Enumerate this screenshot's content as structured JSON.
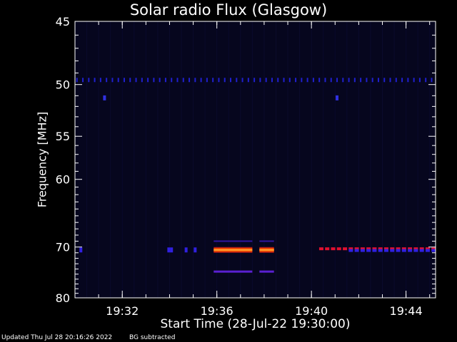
{
  "chart_data": {
    "type": "heatmap",
    "title": "Solar radio Flux (Glasgow)",
    "xlabel": "Start Time (28-Jul-22 19:30:00)",
    "ylabel": "Frequency [MHz]",
    "x_ticks": [
      "19:32",
      "19:36",
      "19:40",
      "19:44"
    ],
    "y_ticks": [
      45,
      50,
      55,
      60,
      70,
      80
    ],
    "xlim": [
      "19:30:00",
      "19:45:15"
    ],
    "ylim": [
      80,
      45
    ],
    "y_scale": "reciprocal",
    "colormap": "blue-to-red-to-yellow (intensity)",
    "background_subtracted": true,
    "features": [
      {
        "kind": "periodic-dots",
        "freq_mhz": 49.6,
        "t_start": "19:30:05",
        "t_end": "19:45:10",
        "period_s": 15,
        "intensity": "low",
        "color": "#2020d0"
      },
      {
        "kind": "band",
        "freq_mhz": 70.5,
        "t_start": "19:35:52",
        "t_end": "19:37:30",
        "intensity": "high",
        "color": "#ff5a00"
      },
      {
        "kind": "band",
        "freq_mhz": 70.5,
        "t_start": "19:37:48",
        "t_end": "19:38:25",
        "intensity": "high",
        "color": "#ff5a00"
      },
      {
        "kind": "band",
        "freq_mhz": 69.0,
        "t_start": "19:35:52",
        "t_end": "19:37:30",
        "intensity": "low",
        "color": "#3018a0"
      },
      {
        "kind": "band",
        "freq_mhz": 69.0,
        "t_start": "19:37:48",
        "t_end": "19:38:25",
        "intensity": "low",
        "color": "#3018a0"
      },
      {
        "kind": "band",
        "freq_mhz": 74.5,
        "t_start": "19:35:52",
        "t_end": "19:37:30",
        "intensity": "medium",
        "color": "#5a20d0"
      },
      {
        "kind": "band",
        "freq_mhz": 74.5,
        "t_start": "19:37:48",
        "t_end": "19:38:25",
        "intensity": "medium",
        "color": "#5a20d0"
      },
      {
        "kind": "dashes",
        "freq_mhz": 70.3,
        "t_start": "19:40:25",
        "t_end": "19:45:15",
        "period_s": 15,
        "intensity": "high",
        "color": "#e01030"
      },
      {
        "kind": "dashes",
        "freq_mhz": 70.6,
        "t_start": "19:41:40",
        "t_end": "19:45:15",
        "period_s": 15,
        "intensity": "medium",
        "color": "#3020e0"
      },
      {
        "kind": "spots",
        "freq_mhz": 70.5,
        "times": [
          "19:30:15",
          "19:33:58",
          "19:34:05",
          "19:34:42",
          "19:35:05"
        ],
        "intensity": "medium",
        "color": "#3020e0"
      },
      {
        "kind": "spots",
        "freq_mhz": 51.2,
        "times": [
          "19:31:15",
          "19:41:05"
        ],
        "intensity": "medium",
        "color": "#3030e0"
      }
    ]
  },
  "footer": {
    "updated": "Updated Thu Jul 28 20:16:26 2022",
    "bg": "BG subtracted"
  },
  "colors": {
    "background": "#000000",
    "plot_background": "#06061e",
    "axis": "#ffffff"
  }
}
